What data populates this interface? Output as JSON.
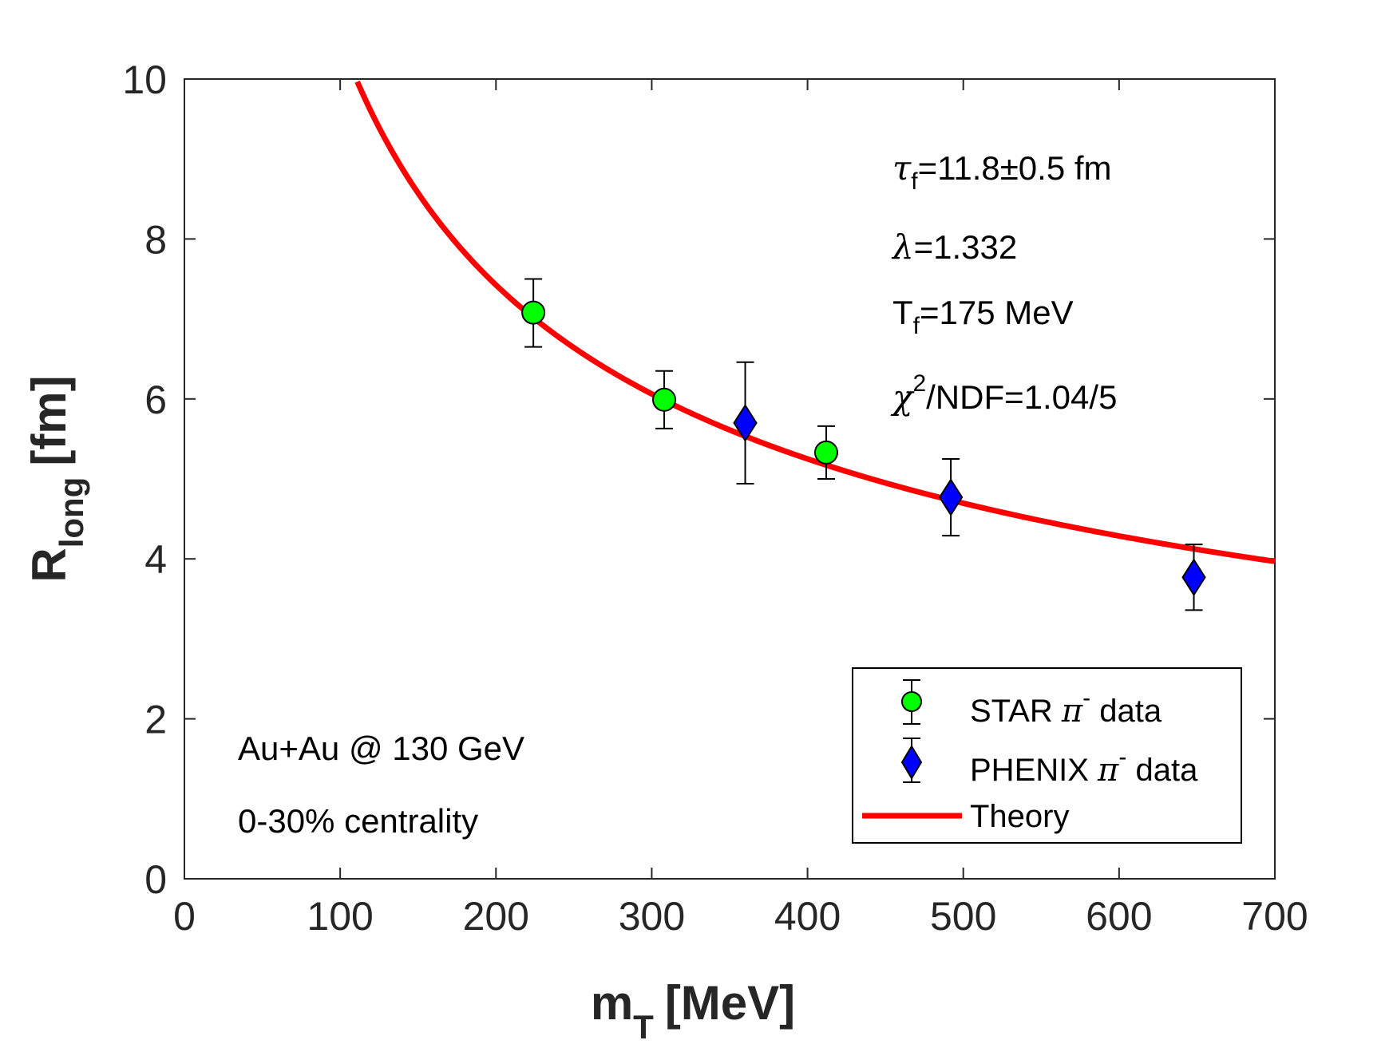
{
  "chart_data": {
    "type": "scatter",
    "x_axis": {
      "label_main": "m",
      "label_sub": "T",
      "label_unit": "[MeV]",
      "range": [
        0,
        700
      ],
      "ticks": [
        0,
        100,
        200,
        300,
        400,
        500,
        600,
        700
      ],
      "tick_labels": [
        "0",
        "100",
        "200",
        "300",
        "400",
        "500",
        "600",
        "700"
      ]
    },
    "y_axis": {
      "label_main": "R",
      "label_sub": "long",
      "label_unit": "[fm]",
      "range": [
        0,
        10
      ],
      "ticks": [
        0,
        2,
        4,
        6,
        8,
        10
      ],
      "tick_labels": [
        "0",
        "2",
        "4",
        "6",
        "8",
        "10"
      ]
    },
    "grid": false,
    "series": [
      {
        "name": "STAR π⁻ data",
        "marker": "circle",
        "color": "#00ff00",
        "points": [
          {
            "x": 224,
            "y": 7.08,
            "yerr_low": 0.43,
            "yerr_high": 0.42
          },
          {
            "x": 308,
            "y": 5.99,
            "yerr_low": 0.36,
            "yerr_high": 0.36
          },
          {
            "x": 412,
            "y": 5.33,
            "yerr_low": 0.33,
            "yerr_high": 0.33
          }
        ]
      },
      {
        "name": "PHENIX π⁻ data",
        "marker": "diamond",
        "color": "#0000ff",
        "points": [
          {
            "x": 360,
            "y": 5.7,
            "yerr_low": 0.76,
            "yerr_high": 0.76
          },
          {
            "x": 492,
            "y": 4.77,
            "yerr_low": 0.48,
            "yerr_high": 0.48
          },
          {
            "x": 648,
            "y": 3.77,
            "yerr_low": 0.41,
            "yerr_high": 0.41
          }
        ]
      },
      {
        "name": "Theory",
        "type": "line",
        "color": "#ff0000",
        "x_start": 111,
        "x_end": 700,
        "model_coefficient": 105,
        "model_exponent": -0.5
      }
    ],
    "legend": {
      "position": "bottom-right",
      "entries": [
        {
          "prefix": "STAR ",
          "greek": "π",
          "sup": "-",
          "suffix": " data"
        },
        {
          "prefix": "PHENIX ",
          "greek": "π",
          "sup": "-",
          "suffix": " data"
        },
        {
          "prefix": "Theory",
          "greek": "",
          "sup": "",
          "suffix": ""
        }
      ]
    },
    "annotations": {
      "tau": {
        "symbol": "τ",
        "sub": "f",
        "text": "=11.8±0.5 fm"
      },
      "lambda": {
        "symbol": "λ",
        "text": "=1.332"
      },
      "temp": {
        "symbol": "T",
        "sub": "f",
        "text": "=175 MeV"
      },
      "chi": {
        "symbol": "χ",
        "sup": "2",
        "text": "/NDF=1.04/5"
      },
      "system": "Au+Au @ 130 GeV",
      "centrality": "0-30% centrality"
    }
  }
}
